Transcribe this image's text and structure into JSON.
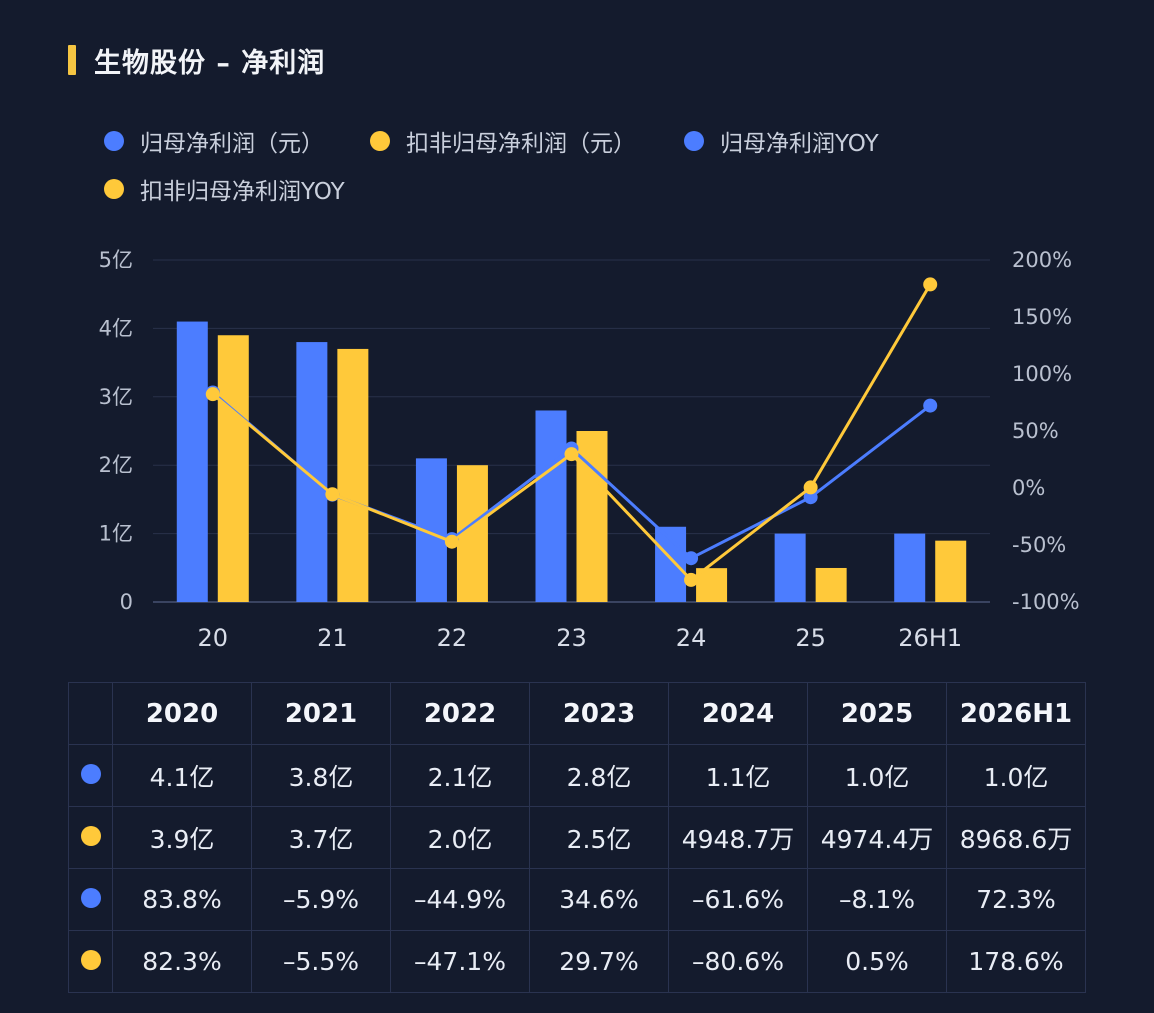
{
  "title": "生物股份 – 净利润",
  "colors": {
    "blue": "#4c7dff",
    "yellow": "#ffc93a",
    "accent": "#f5c542"
  },
  "legend": [
    {
      "label": "归母净利润（元）",
      "color": "#4c7dff"
    },
    {
      "label": "扣非归母净利润（元）",
      "color": "#ffc93a"
    },
    {
      "label": "归母净利润YOY",
      "color": "#4c7dff"
    },
    {
      "label": "扣非归母净利润YOY",
      "color": "#ffc93a"
    }
  ],
  "chart_data": {
    "type": "bar",
    "categories": [
      "20",
      "21",
      "22",
      "23",
      "24",
      "25",
      "26H1"
    ],
    "left_axis": {
      "ticks": [
        "0",
        "1亿",
        "2亿",
        "3亿",
        "4亿",
        "5亿"
      ],
      "ylim": [
        0,
        5
      ]
    },
    "right_axis": {
      "ticks": [
        "-100%",
        "-50%",
        "0%",
        "50%",
        "100%",
        "150%",
        "200%"
      ],
      "ylim": [
        -100,
        200
      ]
    },
    "series": [
      {
        "name": "归母净利润（元）",
        "type": "bar",
        "axis": "left",
        "unit": "亿",
        "values": [
          4.1,
          3.8,
          2.1,
          2.8,
          1.1,
          1.0,
          1.0
        ]
      },
      {
        "name": "扣非归母净利润（元）",
        "type": "bar",
        "axis": "left",
        "unit": "亿",
        "values": [
          3.9,
          3.7,
          2.0,
          2.5,
          0.49487,
          0.49744,
          0.89686
        ]
      },
      {
        "name": "归母净利润YOY",
        "type": "line",
        "axis": "right",
        "unit": "%",
        "values": [
          83.8,
          -5.9,
          -44.9,
          34.6,
          -61.6,
          -8.1,
          72.3
        ]
      },
      {
        "name": "扣非归母净利润YOY",
        "type": "line",
        "axis": "right",
        "unit": "%",
        "values": [
          82.3,
          -5.5,
          -47.1,
          29.7,
          -80.6,
          0.5,
          178.6
        ]
      }
    ],
    "grid": true
  },
  "table": {
    "headers": [
      "2020",
      "2021",
      "2022",
      "2023",
      "2024",
      "2025",
      "2026H1"
    ],
    "rows": [
      {
        "color": "#4c7dff",
        "cells": [
          "4.1亿",
          "3.8亿",
          "2.1亿",
          "2.8亿",
          "1.1亿",
          "1.0亿",
          "1.0亿"
        ]
      },
      {
        "color": "#ffc93a",
        "cells": [
          "3.9亿",
          "3.7亿",
          "2.0亿",
          "2.5亿",
          "4948.7万",
          "4974.4万",
          "8968.6万"
        ]
      },
      {
        "color": "#4c7dff",
        "cells": [
          "83.8%",
          "–5.9%",
          "–44.9%",
          "34.6%",
          "–61.6%",
          "–8.1%",
          "72.3%"
        ]
      },
      {
        "color": "#ffc93a",
        "cells": [
          "82.3%",
          "–5.5%",
          "–47.1%",
          "29.7%",
          "–80.6%",
          "0.5%",
          "178.6%"
        ]
      }
    ]
  }
}
